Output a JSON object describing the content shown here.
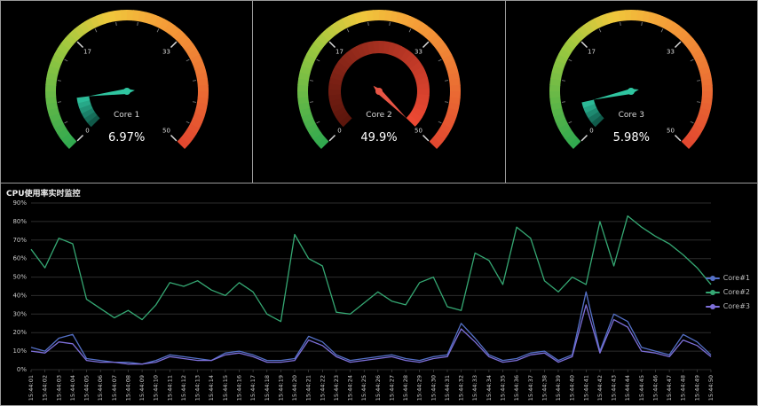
{
  "colors": {
    "background": "#000000",
    "panel_border": "#9a9a9a",
    "gridline": "#2d2d2d",
    "axis_label": "#c8c8c8"
  },
  "gauge_ring_stops": [
    [
      0.0,
      "#2fa84f"
    ],
    [
      0.3,
      "#9ec93f"
    ],
    [
      0.45,
      "#f0c83c"
    ],
    [
      0.6,
      "#f59f38"
    ],
    [
      1.0,
      "#e2462f"
    ]
  ],
  "chart_data": [
    {
      "type": "gauge",
      "title": "Core 1",
      "value": 6.97,
      "detail": "6.97%",
      "min": 0,
      "max": 50,
      "axis_labels": [
        "0",
        "17",
        "33",
        "50"
      ],
      "accent": "#2fc5a0",
      "progress_colors": [
        "#0d4f41",
        "#2fc5a0"
      ]
    },
    {
      "type": "gauge",
      "title": "Core 2",
      "value": 49.9,
      "detail": "49.9%",
      "min": 0,
      "max": 50,
      "axis_labels": [
        "0",
        "17",
        "33",
        "50"
      ],
      "accent": "#e85545",
      "progress_colors": [
        "#5a150c",
        "#ef4a33"
      ]
    },
    {
      "type": "gauge",
      "title": "Core 3",
      "value": 5.98,
      "detail": "5.98%",
      "min": 0,
      "max": 50,
      "axis_labels": [
        "0",
        "17",
        "33",
        "50"
      ],
      "accent": "#2fc5a0",
      "progress_colors": [
        "#0d4f41",
        "#2fc5a0"
      ]
    },
    {
      "type": "line",
      "title": "CPU使用率实时监控",
      "ylim": [
        0,
        90
      ],
      "yticks": [
        "0%",
        "10%",
        "20%",
        "30%",
        "40%",
        "50%",
        "60%",
        "70%",
        "80%",
        "90%"
      ],
      "grid": true,
      "legend_position": "right",
      "x": [
        "15:44:01",
        "15:44:02",
        "15:44:03",
        "15:44:04",
        "15:44:05",
        "15:44:06",
        "15:44:07",
        "15:44:08",
        "15:44:09",
        "15:44:10",
        "15:44:11",
        "15:44:12",
        "15:44:13",
        "15:44:14",
        "15:44:15",
        "15:44:16",
        "15:44:17",
        "15:44:18",
        "15:44:19",
        "15:44:20",
        "15:44:21",
        "15:44:22",
        "15:44:23",
        "15:44:24",
        "15:44:25",
        "15:44:26",
        "15:44:27",
        "15:44:28",
        "15:44:29",
        "15:44:30",
        "15:44:31",
        "15:44:32",
        "15:44:33",
        "15:44:34",
        "15:44:35",
        "15:44:36",
        "15:44:37",
        "15:44:38",
        "15:44:39",
        "15:44:40",
        "15:44:41",
        "15:44:42",
        "15:44:43",
        "15:44:44",
        "15:44:45",
        "15:44:46",
        "15:44:47",
        "15:44:48",
        "15:44:49",
        "15:44:50"
      ],
      "series": [
        {
          "name": "Core#1",
          "color": "#5470c6",
          "values": [
            12,
            10,
            17,
            19,
            6,
            5,
            4,
            4,
            3,
            5,
            8,
            7,
            6,
            5,
            9,
            10,
            8,
            5,
            5,
            6,
            18,
            15,
            8,
            5,
            6,
            7,
            8,
            6,
            5,
            7,
            8,
            25,
            17,
            8,
            5,
            6,
            9,
            10,
            5,
            8,
            42,
            10,
            30,
            26,
            12,
            10,
            8,
            19,
            15,
            8
          ]
        },
        {
          "name": "Core#2",
          "color": "#35a873",
          "values": [
            65,
            55,
            71,
            68,
            38,
            33,
            28,
            32,
            27,
            35,
            47,
            45,
            48,
            43,
            40,
            47,
            42,
            30,
            26,
            73,
            60,
            56,
            31,
            30,
            36,
            42,
            37,
            35,
            47,
            50,
            34,
            32,
            63,
            59,
            46,
            77,
            71,
            48,
            42,
            50,
            46,
            80,
            56,
            83,
            77,
            72,
            68,
            62,
            55,
            46
          ]
        },
        {
          "name": "Core#3",
          "color": "#7d6fd9",
          "values": [
            10,
            9,
            15,
            14,
            5,
            4,
            4,
            3,
            3,
            4,
            7,
            6,
            5,
            5,
            8,
            9,
            7,
            4,
            4,
            5,
            16,
            13,
            7,
            4,
            5,
            6,
            7,
            5,
            4,
            6,
            7,
            22,
            15,
            7,
            4,
            5,
            8,
            9,
            4,
            7,
            35,
            9,
            27,
            23,
            10,
            9,
            7,
            16,
            13,
            7
          ]
        }
      ]
    }
  ]
}
